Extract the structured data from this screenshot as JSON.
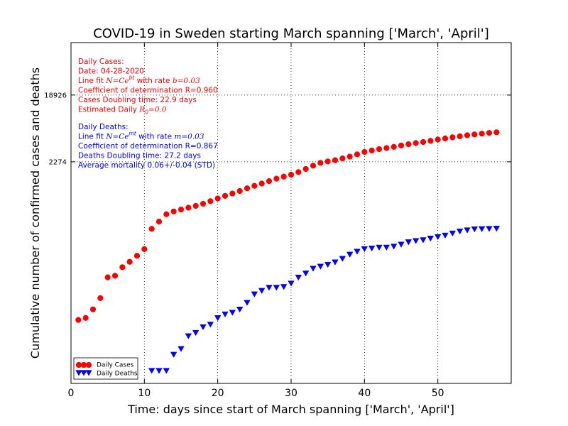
{
  "chart_data": {
    "type": "scatter",
    "title": "COVID-19 in Sweden starting March spanning ['March', 'April']",
    "xlabel": "Time: days since start of March spanning ['March', 'April']",
    "ylabel": "Cumulative number of confirmed cases and deaths",
    "xlim": [
      0,
      60
    ],
    "xticks": [
      0,
      10,
      20,
      30,
      40,
      50
    ],
    "ylim": [
      2,
      100000
    ],
    "yscale": "log",
    "yticks": [
      2274,
      18926
    ],
    "ytick_labels": [
      "2274",
      "18926"
    ],
    "grid": false,
    "reference_lines": [
      {
        "axis": "x",
        "value": 10,
        "style": "dotted"
      },
      {
        "axis": "x",
        "value": 20,
        "style": "dotted"
      },
      {
        "axis": "x",
        "value": 30,
        "style": "dotted"
      },
      {
        "axis": "x",
        "value": 40,
        "style": "dotted"
      },
      {
        "axis": "x",
        "value": 50,
        "style": "dotted"
      },
      {
        "axis": "y",
        "value": 2274,
        "style": "dotted"
      },
      {
        "axis": "y",
        "value": 18926,
        "style": "dotted"
      }
    ],
    "legend_position": "bottom-left",
    "series": [
      {
        "name": "Daily Cases",
        "marker": "circle",
        "color": "#ff0000",
        "x": [
          1,
          2,
          3,
          4,
          5,
          6,
          7,
          8,
          9,
          10,
          11,
          12,
          13,
          14,
          15,
          16,
          17,
          18,
          19,
          20,
          21,
          22,
          23,
          24,
          25,
          26,
          27,
          28,
          29,
          30,
          31,
          32,
          33,
          34,
          35,
          36,
          37,
          38,
          39,
          40,
          41,
          42,
          43,
          44,
          45,
          46,
          47,
          48,
          49,
          50,
          51,
          52,
          53,
          54,
          55,
          56,
          57,
          58
        ],
        "y": [
          15,
          16,
          21,
          30,
          58,
          61,
          80,
          95,
          115,
          142,
          270,
          340,
          430,
          470,
          500,
          530,
          560,
          600,
          650,
          710,
          770,
          830,
          900,
          980,
          1060,
          1140,
          1230,
          1330,
          1420,
          1510,
          1640,
          1810,
          2010,
          2200,
          2300,
          2390,
          2530,
          2680,
          2880,
          3110,
          3250,
          3400,
          3520,
          3650,
          3810,
          3970,
          4120,
          4260,
          4420,
          4610,
          4770,
          4950,
          5110,
          5280,
          5420,
          5560,
          5690,
          5800
        ]
      },
      {
        "name": "Daily Deaths",
        "marker": "triangle-down",
        "color": "#0000ff",
        "x": [
          11,
          12,
          13,
          14,
          15,
          16,
          17,
          18,
          19,
          20,
          21,
          22,
          23,
          24,
          25,
          26,
          27,
          28,
          29,
          30,
          31,
          32,
          33,
          34,
          35,
          36,
          37,
          38,
          39,
          40,
          41,
          42,
          43,
          44,
          45,
          46,
          47,
          48,
          49,
          50,
          51,
          52,
          53,
          54,
          55,
          56,
          57,
          58
        ],
        "y": [
          3,
          3,
          3,
          5,
          6,
          9,
          10,
          12,
          13,
          16,
          18,
          19,
          21,
          26,
          34,
          38,
          42,
          42,
          43,
          48,
          58,
          66,
          77,
          82,
          87,
          94,
          105,
          120,
          132,
          143,
          146,
          150,
          150,
          155,
          165,
          178,
          185,
          190,
          200,
          210,
          220,
          235,
          250,
          260,
          268,
          270,
          272,
          274
        ]
      }
    ],
    "annotations": {
      "cases": {
        "color": "#ff0000",
        "lines": [
          "Daily Cases:",
          "Date: 04-28-2020",
          "Line fit $N = Ce^{bt}$ with rate $b=0.03$",
          "Coefficient of determination R=0.960",
          "Cases Doubling time: 22.9 days",
          "Estimated Daily $R_0=0.0$"
        ]
      },
      "deaths": {
        "color": "#0000ff",
        "lines": [
          "Daily Deaths:",
          "Line fit $N = Ce^{mt}$ with rate $m=0.03$",
          "Coefficient of determination R=0.867",
          "Deaths Doubling time: 27.2 days",
          "Average mortality 0.06+/-0.04 (STD)"
        ]
      }
    }
  }
}
